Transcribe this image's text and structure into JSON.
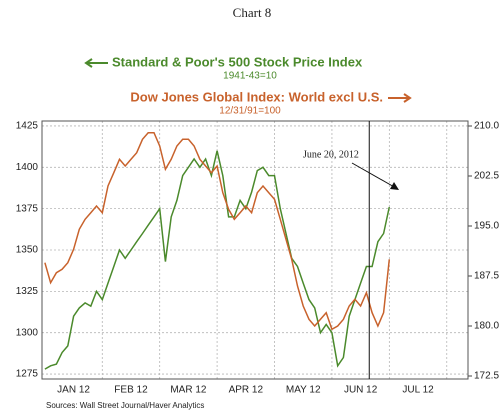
{
  "chart_data": {
    "type": "line",
    "title": "Chart 8",
    "source": "Sources: Wall Street Journal/Haver Analytics",
    "annotation": {
      "text": "June 20, 2012",
      "x": 5.65
    },
    "x": [
      0.0,
      0.1,
      0.2,
      0.3,
      0.4,
      0.5,
      0.6,
      0.7,
      0.8,
      0.9,
      1.0,
      1.1,
      1.2,
      1.3,
      1.4,
      1.5,
      1.6,
      1.7,
      1.8,
      1.9,
      2.0,
      2.1,
      2.2,
      2.3,
      2.4,
      2.5,
      2.6,
      2.7,
      2.8,
      2.9,
      3.0,
      3.1,
      3.2,
      3.3,
      3.4,
      3.5,
      3.6,
      3.7,
      3.8,
      3.9,
      4.0,
      4.1,
      4.2,
      4.3,
      4.4,
      4.5,
      4.6,
      4.7,
      4.8,
      4.9,
      5.0,
      5.1,
      5.2,
      5.3,
      5.4,
      5.5,
      5.6,
      5.7,
      5.8,
      5.9,
      6.0
    ],
    "xlim": [
      -0.05,
      7.37
    ],
    "xticks": [
      {
        "value": 0.5,
        "label": "JAN 12"
      },
      {
        "value": 1.5,
        "label": "FEB 12"
      },
      {
        "value": 2.5,
        "label": "MAR 12"
      },
      {
        "value": 3.5,
        "label": "APR 12"
      },
      {
        "value": 4.5,
        "label": "MAY 12"
      },
      {
        "value": 5.5,
        "label": "JUN 12"
      },
      {
        "value": 6.5,
        "label": "JUL 12"
      }
    ],
    "xgrid": [
      1,
      2,
      3,
      4,
      5,
      6,
      7
    ],
    "ylim": [
      1272,
      1428
    ],
    "yticks": [
      1275,
      1300,
      1325,
      1350,
      1375,
      1400,
      1425
    ],
    "y2lim": [
      172.05,
      210.75
    ],
    "y2ticks": [
      172.5,
      {
        "value": 180,
        "label": "180.0"
      },
      187.5,
      {
        "value": 195,
        "label": "195.0"
      },
      202.5,
      {
        "value": 210,
        "label": "210.0"
      }
    ],
    "grid": true,
    "series": [
      {
        "name": "Standard & Poor's 500 Stock Price Index",
        "note": "1941-43=10",
        "color": "#4b8a2c",
        "axis": "y",
        "values": [
          1278,
          1280,
          1281,
          1288,
          1292,
          1310,
          1315,
          1318,
          1316,
          1325,
          1320,
          1330,
          1340,
          1350,
          1345,
          1350,
          1355,
          1360,
          1365,
          1370,
          1375,
          1343,
          1370,
          1380,
          1395,
          1400,
          1405,
          1400,
          1405,
          1395,
          1410,
          1395,
          1370,
          1370,
          1380,
          1375,
          1385,
          1398,
          1400,
          1395,
          1395,
          1375,
          1360,
          1345,
          1340,
          1330,
          1320,
          1315,
          1300,
          1305,
          1300,
          1280,
          1285,
          1310,
          1320,
          1330,
          1340,
          1340,
          1355,
          1360,
          1376
        ]
      },
      {
        "name": "Dow Jones Global Index: World excl U.S.",
        "note": "12/31/91=100",
        "color": "#c8622c",
        "axis": "y2",
        "values": [
          189.5,
          186.5,
          188,
          188.5,
          189.5,
          191.5,
          194.5,
          196,
          197,
          198,
          197,
          201,
          203,
          205,
          204,
          205,
          206,
          208,
          209,
          209,
          207,
          203.5,
          205,
          207,
          208,
          208,
          207,
          205,
          204,
          203,
          204,
          200,
          197.5,
          196,
          197,
          198,
          197,
          200,
          201,
          200,
          199,
          196,
          193,
          190,
          186,
          183,
          181,
          180,
          181,
          182,
          179.5,
          180,
          181,
          183,
          184,
          183,
          185,
          182,
          180,
          182,
          190
        ]
      }
    ]
  }
}
